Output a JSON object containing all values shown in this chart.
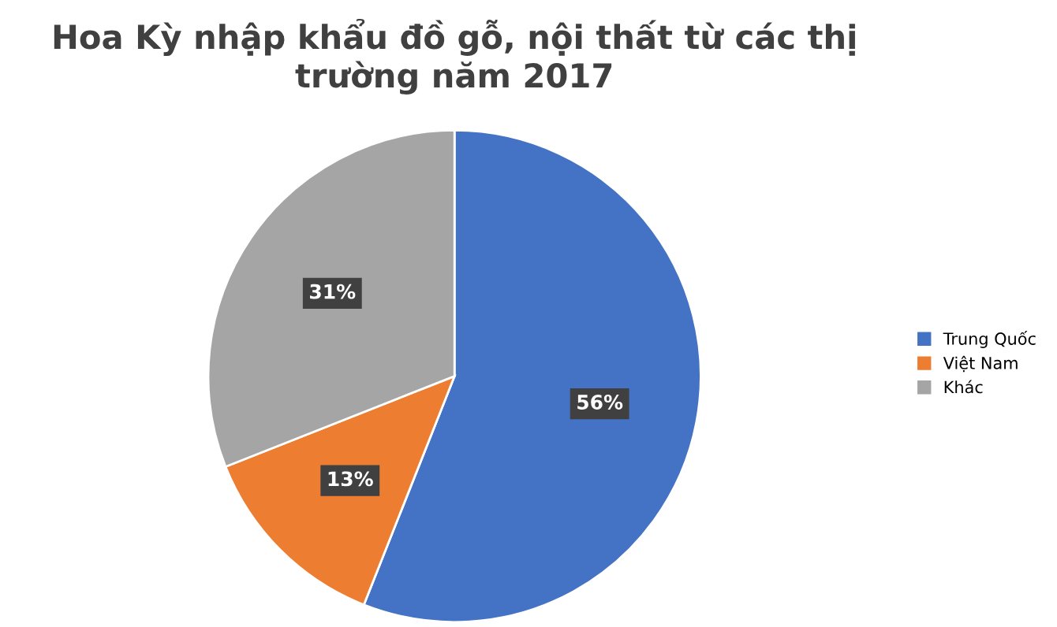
{
  "chart_data": {
    "type": "pie",
    "title": "Hoa Kỳ nhập khẩu đồ gỗ, nội thất từ các thị trường năm 2017",
    "categories": [
      "Trung Quốc",
      "Việt Nam",
      "Khác"
    ],
    "values": [
      56,
      13,
      31
    ],
    "colors": [
      "#4472c4",
      "#ed7d31",
      "#a5a5a5"
    ],
    "value_labels": [
      "56%",
      "13%",
      "31%"
    ],
    "legend": "right"
  }
}
